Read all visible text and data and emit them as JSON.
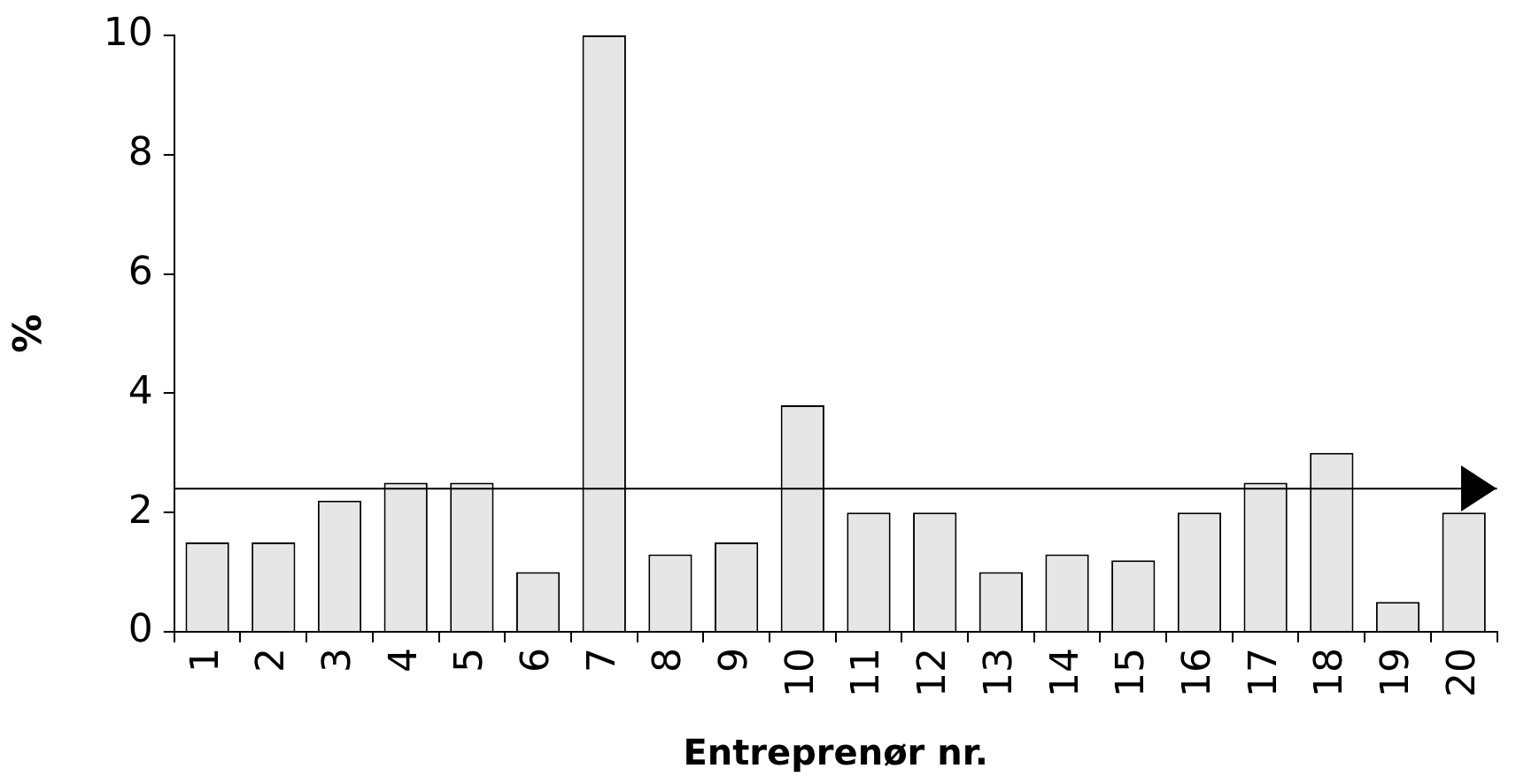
{
  "chart_data": {
    "type": "bar",
    "xlabel": "Entreprenør nr.",
    "ylabel": "%",
    "categories": [
      "1",
      "2",
      "3",
      "4",
      "5",
      "6",
      "7",
      "8",
      "9",
      "10",
      "11",
      "12",
      "13",
      "14",
      "15",
      "16",
      "17",
      "18",
      "19",
      "20"
    ],
    "values": [
      1.5,
      1.5,
      2.2,
      2.5,
      2.5,
      1,
      10,
      1.3,
      1.5,
      3.8,
      2,
      2,
      1,
      1.3,
      1.2,
      2,
      2.5,
      3,
      0.5,
      2
    ],
    "color": "#e6e6e6",
    "ylim": [
      0,
      10
    ],
    "yticks": [
      0,
      2,
      4,
      6,
      8,
      10
    ],
    "grid": false,
    "legend": false,
    "ref_lines": [
      {
        "axis": "y",
        "value": 2.4,
        "label": null,
        "color": "#000000"
      }
    ]
  }
}
